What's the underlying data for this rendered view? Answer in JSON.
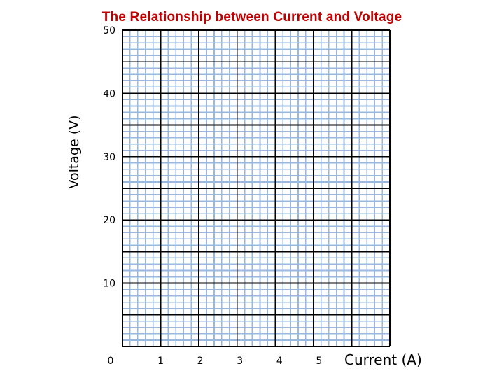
{
  "chart_data": {
    "type": "line",
    "title": "The Relationship between Current and Voltage",
    "xlabel": "Current (A)",
    "ylabel": "Voltage (V)",
    "xlim": [
      0,
      7
    ],
    "ylim": [
      0,
      50
    ],
    "x_ticks": [
      "0",
      "1",
      "2",
      "3",
      "4",
      "5"
    ],
    "y_ticks": [
      "50",
      "40",
      "30",
      "20",
      "10"
    ],
    "grid": "on",
    "minor_grid_color": "#9ab8df",
    "major_grid_color": "#000000",
    "series": []
  }
}
